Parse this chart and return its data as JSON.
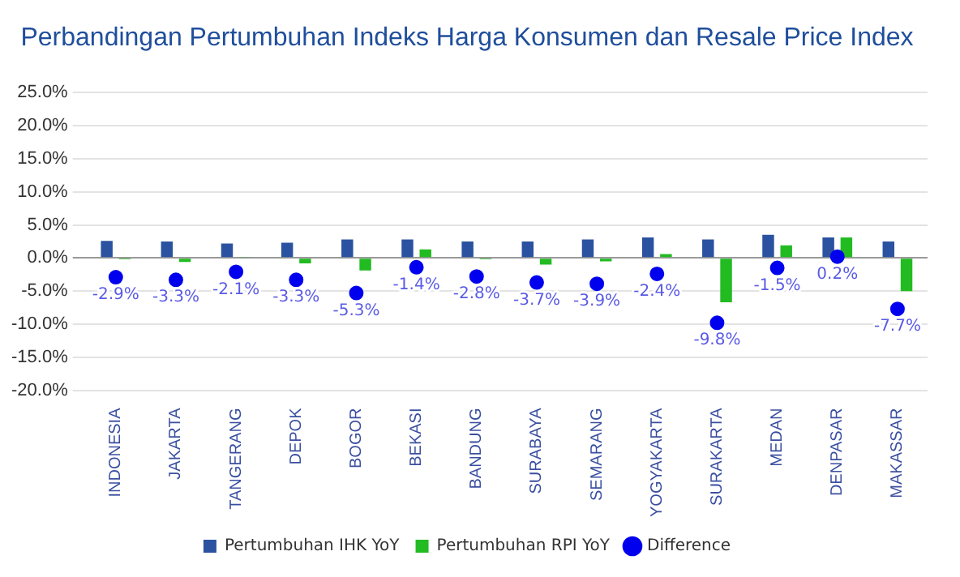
{
  "chart_data": {
    "type": "bar",
    "title": "Perbandingan Pertumbuhan Indeks Harga Konsumen dan Resale Price Index",
    "categories": [
      "INDONESIA",
      "JAKARTA",
      "TANGERANG",
      "DEPOK",
      "BOGOR",
      "BEKASI",
      "BANDUNG",
      "SURABAYA",
      "SEMARANG",
      "YOGYAKARTA",
      "SURAKARTA",
      "MEDAN",
      "DENPASAR",
      "MAKASSAR"
    ],
    "series": [
      {
        "name": "Pertumbuhan IHK YoY",
        "color": "#2a52a0",
        "values": [
          2.6,
          2.5,
          2.2,
          2.3,
          2.8,
          2.8,
          2.5,
          2.5,
          2.8,
          3.1,
          2.8,
          3.5,
          3.1,
          2.5
        ]
      },
      {
        "name": "Pertumbuhan RPI YoY",
        "color": "#22bb22",
        "values": [
          -0.2,
          -0.6,
          0.1,
          -0.8,
          -1.9,
          1.3,
          -0.2,
          -1.0,
          -0.5,
          0.6,
          -6.7,
          1.9,
          3.1,
          -5.0
        ]
      },
      {
        "name": "Difference",
        "type": "scatter",
        "color": "#0000ee",
        "x": [
          "INDONESIA",
          "JAKARTA",
          "TANGERANG",
          "DEPOK",
          "BOGOR",
          "BEKASI",
          "BANDUNG",
          "SURABAYA",
          "SEMARANG",
          "YOGYAKARTA",
          "SURAKARTA",
          "MEDAN",
          "DENPASAR",
          "MAKASSAR"
        ],
        "values": [
          -2.9,
          -3.3,
          -2.1,
          -3.3,
          -5.3,
          -1.4,
          -2.8,
          -3.7,
          -3.9,
          -2.4,
          -9.8,
          -1.5,
          0.2,
          -7.7
        ],
        "value_labels": [
          "-2.9%",
          "-3.3%",
          "-2.1%",
          "-3.3%",
          "-5.3%",
          "-1.4%",
          "-2.8%",
          "-3.7%",
          "-3.9%",
          "-2.4%",
          "-9.8%",
          "-1.5%",
          "0.2%",
          "-7.7%"
        ]
      }
    ],
    "ylim": [
      -20,
      25
    ],
    "yticks": [
      {
        "value": -20,
        "label": "-20.0%"
      },
      {
        "value": -15,
        "label": "-15.0%"
      },
      {
        "value": -10,
        "label": "-10.0%"
      },
      {
        "value": -5,
        "label": "-5.0%"
      },
      {
        "value": 0,
        "label": "0.0%"
      },
      {
        "value": 5,
        "label": "5.0%"
      },
      {
        "value": 10,
        "label": "10.0%"
      },
      {
        "value": 15,
        "label": "15.0%"
      },
      {
        "value": 20,
        "label": "20.0%"
      },
      {
        "value": 25,
        "label": "25.0%"
      }
    ],
    "grid": "y",
    "legend": "bottom",
    "marker": "circle"
  }
}
